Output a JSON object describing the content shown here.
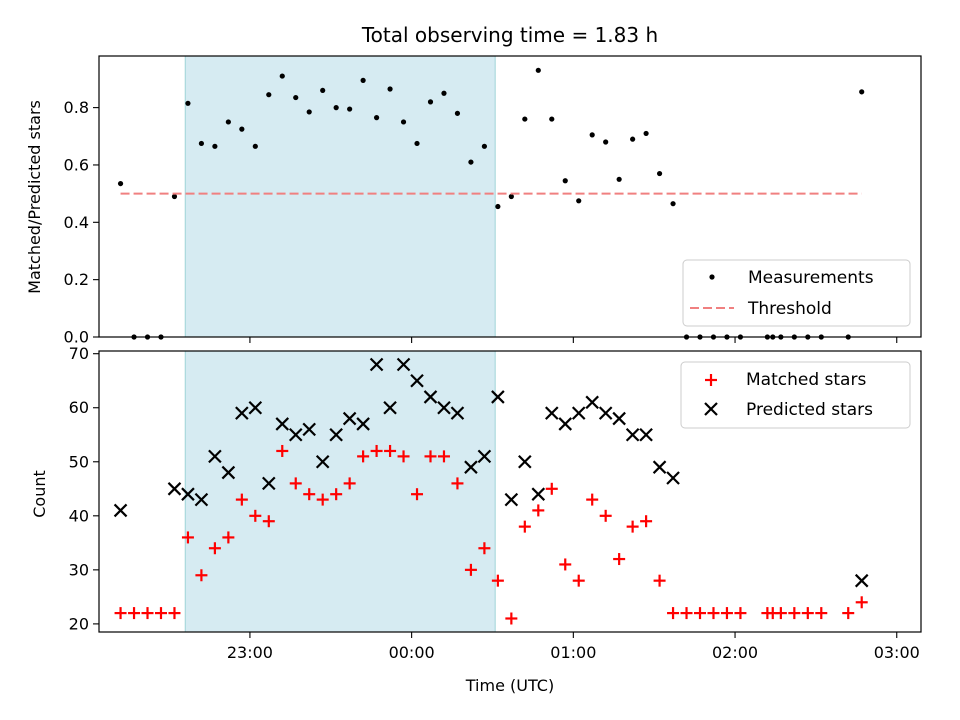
{
  "title": "Total observing time = 1.83 h",
  "xlabel": "Time (UTC)",
  "x_ticks": [
    "23:00",
    "00:00",
    "01:00",
    "02:00",
    "03:00"
  ],
  "highlight": {
    "start": "22:36",
    "end": "00:31",
    "color": "#add8e6"
  },
  "chart_data": [
    {
      "type": "scatter",
      "ylabel": "Matched/Predicted stars",
      "ylim": [
        0,
        0.98
      ],
      "y_ticks": [
        "0.0",
        "0.2",
        "0.4",
        "0.6",
        "0.8"
      ],
      "legend_position": "lower-right",
      "series": [
        {
          "name": "Measurements",
          "marker": "dot",
          "color": "#000000",
          "x": [
            "22:12",
            "22:17",
            "22:22",
            "22:27",
            "22:32",
            "22:37",
            "22:42",
            "22:47",
            "22:52",
            "22:57",
            "23:02",
            "23:07",
            "23:12",
            "23:17",
            "23:22",
            "23:27",
            "23:32",
            "23:37",
            "23:42",
            "23:47",
            "23:52",
            "23:57",
            "00:02",
            "00:07",
            "00:12",
            "00:17",
            "00:22",
            "00:27",
            "00:32",
            "00:37",
            "00:42",
            "00:47",
            "00:52",
            "00:57",
            "01:02",
            "01:07",
            "01:12",
            "01:17",
            "01:22",
            "01:27",
            "01:32",
            "01:37",
            "01:42",
            "01:47",
            "01:52",
            "01:57",
            "02:02",
            "02:12",
            "02:14",
            "02:17",
            "02:22",
            "02:27",
            "02:32",
            "02:42",
            "02:47"
          ],
          "y": [
            0.535,
            0,
            0,
            0,
            0.49,
            0.815,
            0.675,
            0.665,
            0.75,
            0.725,
            0.665,
            0.845,
            0.91,
            0.835,
            0.785,
            0.86,
            0.8,
            0.795,
            0.895,
            0.765,
            0.865,
            0.75,
            0.675,
            0.82,
            0.85,
            0.78,
            0.61,
            0.665,
            0.455,
            0.49,
            0.76,
            0.93,
            0.76,
            0.545,
            0.475,
            0.705,
            0.68,
            0.55,
            0.69,
            0.71,
            0.57,
            0.465,
            0,
            0,
            0,
            0,
            0,
            0,
            0,
            0,
            0,
            0,
            0,
            0,
            0.855
          ]
        },
        {
          "name": "Threshold",
          "marker": "dashed-line",
          "color": "#f08080",
          "x": [
            "22:12",
            "02:47"
          ],
          "y": [
            0.5,
            0.5
          ]
        }
      ]
    },
    {
      "type": "scatter",
      "ylabel": "Count",
      "ylim": [
        18.5,
        70.5
      ],
      "y_ticks": [
        "20",
        "30",
        "40",
        "50",
        "60",
        "70"
      ],
      "legend_position": "upper-right",
      "series": [
        {
          "name": "Matched stars",
          "marker": "plus",
          "color": "#ff0000",
          "x": [
            "22:12",
            "22:17",
            "22:22",
            "22:27",
            "22:32",
            "22:37",
            "22:42",
            "22:47",
            "22:52",
            "22:57",
            "23:02",
            "23:07",
            "23:12",
            "23:17",
            "23:22",
            "23:27",
            "23:32",
            "23:37",
            "23:42",
            "23:47",
            "23:52",
            "23:57",
            "00:02",
            "00:07",
            "00:12",
            "00:17",
            "00:22",
            "00:27",
            "00:32",
            "00:37",
            "00:42",
            "00:47",
            "00:52",
            "00:57",
            "01:02",
            "01:07",
            "01:12",
            "01:17",
            "01:22",
            "01:27",
            "01:32",
            "01:37",
            "01:42",
            "01:47",
            "01:52",
            "01:57",
            "02:02",
            "02:12",
            "02:14",
            "02:17",
            "02:22",
            "02:27",
            "02:32",
            "02:42",
            "02:47"
          ],
          "y": [
            22,
            22,
            22,
            22,
            22,
            36,
            29,
            34,
            36,
            43,
            40,
            39,
            52,
            46,
            44,
            43,
            44,
            46,
            51,
            52,
            52,
            51,
            44,
            51,
            51,
            46,
            30,
            34,
            28,
            21,
            38,
            41,
            45,
            31,
            28,
            43,
            40,
            32,
            38,
            39,
            28,
            22,
            22,
            22,
            22,
            22,
            22,
            22,
            22,
            22,
            22,
            22,
            22,
            22,
            24
          ]
        },
        {
          "name": "Predicted stars",
          "marker": "x",
          "color": "#000000",
          "x": [
            "22:12",
            "22:32",
            "22:37",
            "22:42",
            "22:47",
            "22:52",
            "22:57",
            "23:02",
            "23:07",
            "23:12",
            "23:17",
            "23:22",
            "23:27",
            "23:32",
            "23:37",
            "23:42",
            "23:47",
            "23:52",
            "23:57",
            "00:02",
            "00:07",
            "00:12",
            "00:17",
            "00:22",
            "00:27",
            "00:32",
            "00:37",
            "00:42",
            "00:47",
            "00:52",
            "00:57",
            "01:02",
            "01:07",
            "01:12",
            "01:17",
            "01:22",
            "01:27",
            "01:32",
            "01:37",
            "02:47"
          ],
          "y": [
            41,
            45,
            44,
            43,
            51,
            48,
            59,
            60,
            46,
            57,
            55,
            56,
            50,
            55,
            58,
            57,
            68,
            60,
            68,
            65,
            62,
            60,
            59,
            49,
            51,
            62,
            43,
            50,
            44,
            59,
            57,
            59,
            61,
            59,
            58,
            55,
            55,
            49,
            47,
            28
          ]
        }
      ]
    }
  ]
}
